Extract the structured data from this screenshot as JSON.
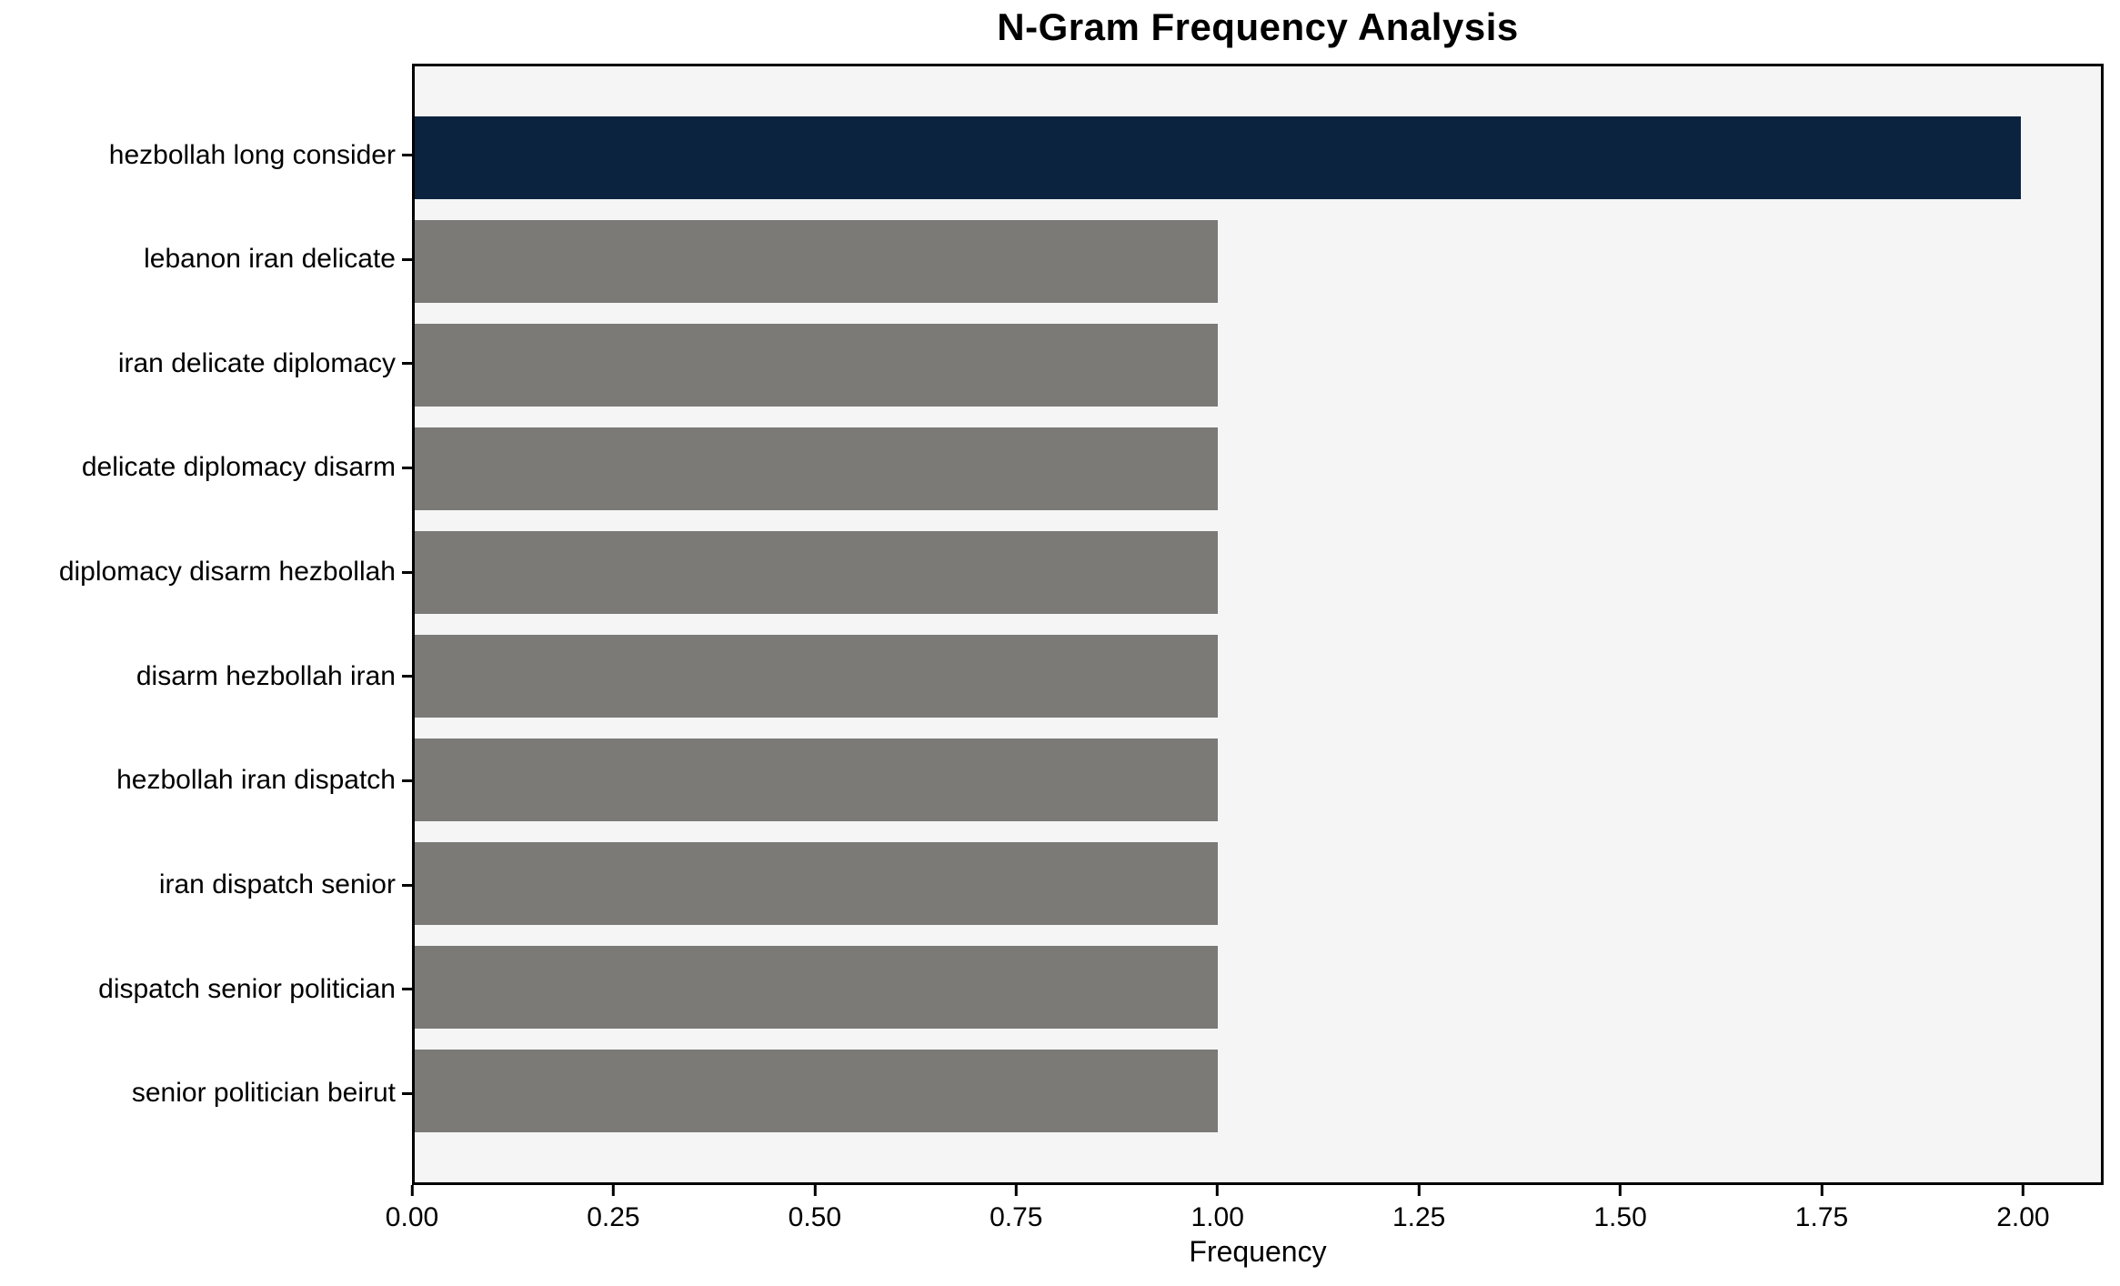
{
  "chart_data": {
    "type": "bar",
    "orientation": "horizontal",
    "title": "N-Gram Frequency Analysis",
    "xlabel": "Frequency",
    "ylabel": "",
    "categories": [
      "hezbollah long consider",
      "lebanon iran delicate",
      "iran delicate diplomacy",
      "delicate diplomacy disarm",
      "diplomacy disarm hezbollah",
      "disarm hezbollah iran",
      "hezbollah iran dispatch",
      "iran dispatch senior",
      "dispatch senior politician",
      "senior politician beirut"
    ],
    "values": [
      2,
      1,
      1,
      1,
      1,
      1,
      1,
      1,
      1,
      1
    ],
    "xlim": [
      0,
      2.1
    ],
    "xtick_values": [
      0,
      0.25,
      0.5,
      0.75,
      1.0,
      1.25,
      1.5,
      1.75,
      2.0
    ],
    "xtick_labels": [
      "0.00",
      "0.25",
      "0.50",
      "0.75",
      "1.00",
      "1.25",
      "1.50",
      "1.75",
      "2.00"
    ],
    "grid": false,
    "legend_position": "none",
    "highlight_index": 0,
    "colors": {
      "highlight_bar": "#0c2340",
      "default_bar": "#7b7a77",
      "plot_background": "#f5f5f5",
      "figure_background": "#ffffff",
      "axis": "#000000"
    }
  }
}
